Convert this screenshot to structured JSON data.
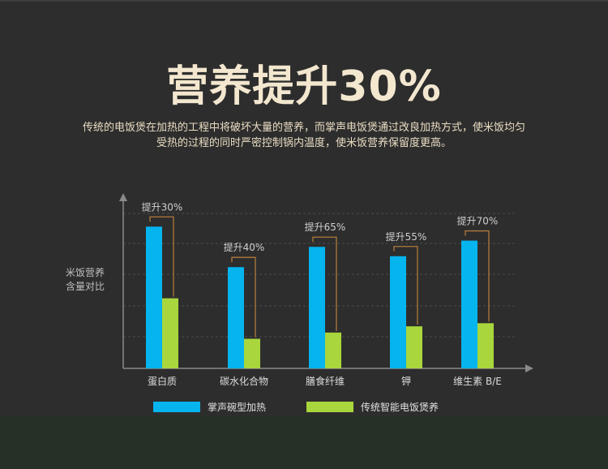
{
  "title": "营养提升30%",
  "description_lines": [
    "传统的电饭煲在加热的工程中将破坏大量的营养，而掌声电饭煲通过改良加热方式，使米饭均匀",
    "受热的过程的同时严密控制锅内温度，使米饭营养保留度更高。"
  ],
  "colors": {
    "background": "#2d2d2d",
    "title": "#f3e7cf",
    "series_blue": "#06b4ee",
    "series_green": "#a8d63c",
    "bracket": "#b07a3a",
    "axis": "#8a8a8a"
  },
  "chart_data": {
    "type": "bar",
    "ylabel": "米饭营养含量对比",
    "ylabel_lines": [
      "米饭营养",
      "含量对比"
    ],
    "xlabel": "",
    "ylim": [
      0,
      100
    ],
    "grid": "dashed-horizontal",
    "legend_position": "bottom",
    "categories": [
      "蛋白质",
      "碳水化合物",
      "膳食纤维",
      "钾",
      "维生素 B/E"
    ],
    "series": [
      {
        "name": "掌声碗型加热",
        "color": "#06b4ee",
        "values": [
          91,
          65,
          78,
          72,
          82
        ]
      },
      {
        "name": "传统智能电饭煲养",
        "color": "#a8d63c",
        "values": [
          45,
          19,
          23,
          27,
          29
        ]
      }
    ],
    "annotations": [
      "提升30%",
      "提升40%",
      "提升65%",
      "提升55%",
      "提升70%"
    ]
  }
}
